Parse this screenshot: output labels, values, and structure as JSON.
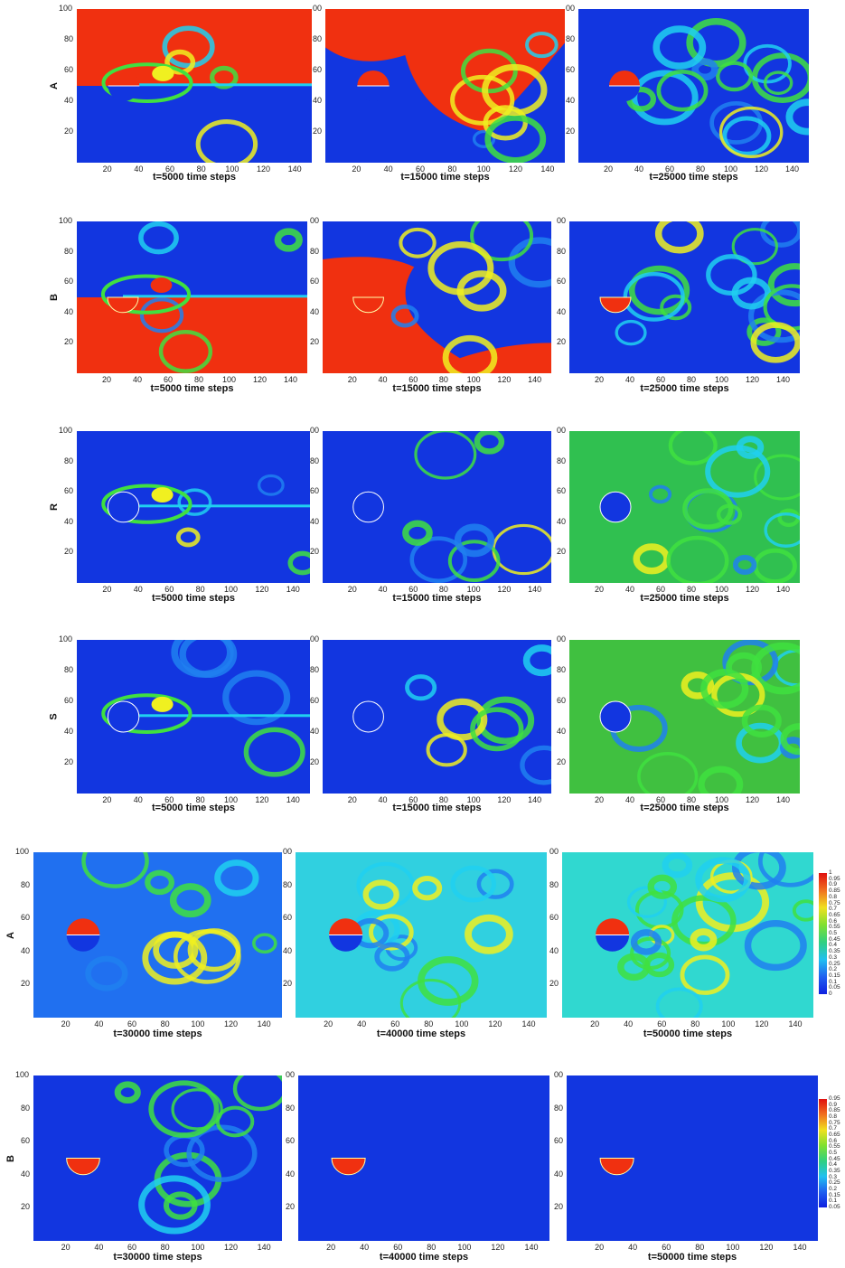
{
  "rows": [
    {
      "label": "A",
      "captions": [
        "t=5000 time steps",
        "t=15000 time steps",
        "t=25000 time steps"
      ]
    },
    {
      "label": "B",
      "captions": [
        "t=5000 time steps",
        "t=15000 time steps",
        "t=25000 time steps"
      ]
    },
    {
      "label": "R",
      "captions": [
        "t=5000 time steps",
        "t=15000 time steps",
        "t=25000 time steps"
      ]
    },
    {
      "label": "S",
      "captions": [
        "t=5000 time steps",
        "t=15000 time steps",
        "t=25000 time steps"
      ]
    },
    {
      "label": "A",
      "captions": [
        "t=30000 time steps",
        "t=40000 time steps",
        "t=50000 time steps"
      ]
    },
    {
      "label": "B",
      "captions": [
        "t=30000 time steps",
        "t=40000 time steps",
        "t=50000 time steps"
      ]
    }
  ],
  "x_ticks": [
    "20",
    "40",
    "60",
    "80",
    "100",
    "120",
    "140"
  ],
  "y_ticks_first": [
    "100",
    "80",
    "60",
    "40",
    "20"
  ],
  "y_ticks_other": [
    "00",
    "80",
    "60",
    "40",
    "20"
  ],
  "colorbar_A": [
    "1",
    "0.95",
    "0.9",
    "0.85",
    "0.8",
    "0.75",
    "0.7",
    "0.65",
    "0.6",
    "0.55",
    "0.5",
    "0.45",
    "0.4",
    "0.35",
    "0.3",
    "0.25",
    "0.2",
    "0.15",
    "0.1",
    "0.05",
    "0"
  ],
  "colorbar_B": [
    "0.95",
    "0.9",
    "0.85",
    "0.8",
    "0.75",
    "0.7",
    "0.65",
    "0.6",
    "0.55",
    "0.5",
    "0.45",
    "0.4",
    "0.35",
    "0.3",
    "0.25",
    "0.2",
    "0.15",
    "0.1",
    "0.05"
  ],
  "colors": {
    "low": "#1236e0",
    "cyan": "#20d0f0",
    "green": "#40e040",
    "yellow": "#f0f020",
    "high": "#f03010"
  }
}
